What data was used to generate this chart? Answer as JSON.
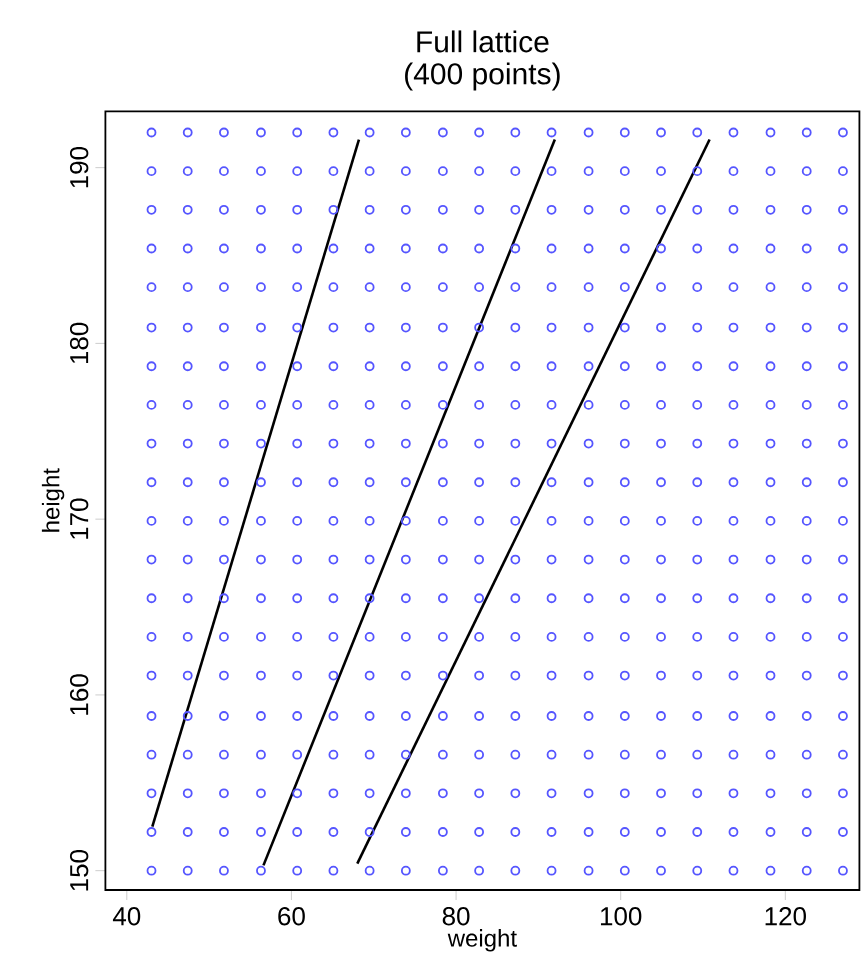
{
  "chart_data": {
    "type": "scatter",
    "title": "Full lattice",
    "subtitle": "(400 points)",
    "xlabel": "weight",
    "ylabel": "height",
    "xlim": [
      37.4,
      129
    ],
    "ylim": [
      148.9,
      193.2
    ],
    "xticks": [
      40,
      60,
      80,
      100,
      120
    ],
    "yticks": [
      150,
      160,
      170,
      180,
      190
    ],
    "series": [
      {
        "marker": "circle",
        "color": "#5555ff",
        "x": [
          43.0,
          47.4,
          51.8,
          56.3,
          60.7,
          65.1,
          69.5,
          73.9,
          78.4,
          82.8,
          87.2,
          91.6,
          96.1,
          100.5,
          104.9,
          109.3,
          113.7,
          118.2,
          122.6,
          127.0,
          43.0,
          47.4,
          51.8,
          56.3,
          60.7,
          65.1,
          69.5,
          73.9,
          78.4,
          82.8,
          87.2,
          91.6,
          96.1,
          100.5,
          104.9,
          109.3,
          113.7,
          118.2,
          122.6,
          127.0,
          43.0,
          47.4,
          51.8,
          56.3,
          60.7,
          65.1,
          69.5,
          73.9,
          78.4,
          82.8,
          87.2,
          91.6,
          96.1,
          100.5,
          104.9,
          109.3,
          113.7,
          118.2,
          122.6,
          127.0,
          43.0,
          47.4,
          51.8,
          56.3,
          60.7,
          65.1,
          69.5,
          73.9,
          78.4,
          82.8,
          87.2,
          91.6,
          96.1,
          100.5,
          104.9,
          109.3,
          113.7,
          118.2,
          122.6,
          127.0,
          43.0,
          47.4,
          51.8,
          56.3,
          60.7,
          65.1,
          69.5,
          73.9,
          78.4,
          82.8,
          87.2,
          91.6,
          96.1,
          100.5,
          104.9,
          109.3,
          113.7,
          118.2,
          122.6,
          127.0,
          43.0,
          47.4,
          51.8,
          56.3,
          60.7,
          65.1,
          69.5,
          73.9,
          78.4,
          82.8,
          87.2,
          91.6,
          96.1,
          100.5,
          104.9,
          109.3,
          113.7,
          118.2,
          122.6,
          127.0,
          43.0,
          47.4,
          51.8,
          56.3,
          60.7,
          65.1,
          69.5,
          73.9,
          78.4,
          82.8,
          87.2,
          91.6,
          96.1,
          100.5,
          104.9,
          109.3,
          113.7,
          118.2,
          122.6,
          127.0,
          43.0,
          47.4,
          51.8,
          56.3,
          60.7,
          65.1,
          69.5,
          73.9,
          78.4,
          82.8,
          87.2,
          91.6,
          96.1,
          100.5,
          104.9,
          109.3,
          113.7,
          118.2,
          122.6,
          127.0,
          43.0,
          47.4,
          51.8,
          56.3,
          60.7,
          65.1,
          69.5,
          73.9,
          78.4,
          82.8,
          87.2,
          91.6,
          96.1,
          100.5,
          104.9,
          109.3,
          113.7,
          118.2,
          122.6,
          127.0,
          43.0,
          47.4,
          51.8,
          56.3,
          60.7,
          65.1,
          69.5,
          73.9,
          78.4,
          82.8,
          87.2,
          91.6,
          96.1,
          100.5,
          104.9,
          109.3,
          113.7,
          118.2,
          122.6,
          127.0,
          43.0,
          47.4,
          51.8,
          56.3,
          60.7,
          65.1,
          69.5,
          73.9,
          78.4,
          82.8,
          87.2,
          91.6,
          96.1,
          100.5,
          104.9,
          109.3,
          113.7,
          118.2,
          122.6,
          127.0,
          43.0,
          47.4,
          51.8,
          56.3,
          60.7,
          65.1,
          69.5,
          73.9,
          78.4,
          82.8,
          87.2,
          91.6,
          96.1,
          100.5,
          104.9,
          109.3,
          113.7,
          118.2,
          122.6,
          127.0,
          43.0,
          47.4,
          51.8,
          56.3,
          60.7,
          65.1,
          69.5,
          73.9,
          78.4,
          82.8,
          87.2,
          91.6,
          96.1,
          100.5,
          104.9,
          109.3,
          113.7,
          118.2,
          122.6,
          127.0,
          43.0,
          47.4,
          51.8,
          56.3,
          60.7,
          65.1,
          69.5,
          73.9,
          78.4,
          82.8,
          87.2,
          91.6,
          96.1,
          100.5,
          104.9,
          109.3,
          113.7,
          118.2,
          122.6,
          127.0,
          43.0,
          47.4,
          51.8,
          56.3,
          60.7,
          65.1,
          69.5,
          73.9,
          78.4,
          82.8,
          87.2,
          91.6,
          96.1,
          100.5,
          104.9,
          109.3,
          113.7,
          118.2,
          122.6,
          127.0,
          43.0,
          47.4,
          51.8,
          56.3,
          60.7,
          65.1,
          69.5,
          73.9,
          78.4,
          82.8,
          87.2,
          91.6,
          96.1,
          100.5,
          104.9,
          109.3,
          113.7,
          118.2,
          122.6,
          127.0,
          43.0,
          47.4,
          51.8,
          56.3,
          60.7,
          65.1,
          69.5,
          73.9,
          78.4,
          82.8,
          87.2,
          91.6,
          96.1,
          100.5,
          104.9,
          109.3,
          113.7,
          118.2,
          122.6,
          127.0,
          43.0,
          47.4,
          51.8,
          56.3,
          60.7,
          65.1,
          69.5,
          73.9,
          78.4,
          82.8,
          87.2,
          91.6,
          96.1,
          100.5,
          104.9,
          109.3,
          113.7,
          118.2,
          122.6,
          127.0,
          43.0,
          47.4,
          51.8,
          56.3,
          60.7,
          65.1,
          69.5,
          73.9,
          78.4,
          82.8,
          87.2,
          91.6,
          96.1,
          100.5,
          104.9,
          109.3,
          113.7,
          118.2,
          122.6,
          127.0,
          43.0,
          47.4,
          51.8,
          56.3,
          60.7,
          65.1,
          69.5,
          73.9,
          78.4,
          82.8,
          87.2,
          91.6,
          96.1,
          100.5,
          104.9,
          109.3,
          113.7,
          118.2,
          122.6,
          127.0
        ],
        "values": [
          150.0,
          150.0,
          150.0,
          150.0,
          150.0,
          150.0,
          150.0,
          150.0,
          150.0,
          150.0,
          150.0,
          150.0,
          150.0,
          150.0,
          150.0,
          150.0,
          150.0,
          150.0,
          150.0,
          150.0,
          152.2,
          152.2,
          152.2,
          152.2,
          152.2,
          152.2,
          152.2,
          152.2,
          152.2,
          152.2,
          152.2,
          152.2,
          152.2,
          152.2,
          152.2,
          152.2,
          152.2,
          152.2,
          152.2,
          152.2,
          154.4,
          154.4,
          154.4,
          154.4,
          154.4,
          154.4,
          154.4,
          154.4,
          154.4,
          154.4,
          154.4,
          154.4,
          154.4,
          154.4,
          154.4,
          154.4,
          154.4,
          154.4,
          154.4,
          154.4,
          156.6,
          156.6,
          156.6,
          156.6,
          156.6,
          156.6,
          156.6,
          156.6,
          156.6,
          156.6,
          156.6,
          156.6,
          156.6,
          156.6,
          156.6,
          156.6,
          156.6,
          156.6,
          156.6,
          156.6,
          158.8,
          158.8,
          158.8,
          158.8,
          158.8,
          158.8,
          158.8,
          158.8,
          158.8,
          158.8,
          158.8,
          158.8,
          158.8,
          158.8,
          158.8,
          158.8,
          158.8,
          158.8,
          158.8,
          158.8,
          161.1,
          161.1,
          161.1,
          161.1,
          161.1,
          161.1,
          161.1,
          161.1,
          161.1,
          161.1,
          161.1,
          161.1,
          161.1,
          161.1,
          161.1,
          161.1,
          161.1,
          161.1,
          161.1,
          161.1,
          163.3,
          163.3,
          163.3,
          163.3,
          163.3,
          163.3,
          163.3,
          163.3,
          163.3,
          163.3,
          163.3,
          163.3,
          163.3,
          163.3,
          163.3,
          163.3,
          163.3,
          163.3,
          163.3,
          163.3,
          165.5,
          165.5,
          165.5,
          165.5,
          165.5,
          165.5,
          165.5,
          165.5,
          165.5,
          165.5,
          165.5,
          165.5,
          165.5,
          165.5,
          165.5,
          165.5,
          165.5,
          165.5,
          165.5,
          165.5,
          167.7,
          167.7,
          167.7,
          167.7,
          167.7,
          167.7,
          167.7,
          167.7,
          167.7,
          167.7,
          167.7,
          167.7,
          167.7,
          167.7,
          167.7,
          167.7,
          167.7,
          167.7,
          167.7,
          167.7,
          169.9,
          169.9,
          169.9,
          169.9,
          169.9,
          169.9,
          169.9,
          169.9,
          169.9,
          169.9,
          169.9,
          169.9,
          169.9,
          169.9,
          169.9,
          169.9,
          169.9,
          169.9,
          169.9,
          169.9,
          172.1,
          172.1,
          172.1,
          172.1,
          172.1,
          172.1,
          172.1,
          172.1,
          172.1,
          172.1,
          172.1,
          172.1,
          172.1,
          172.1,
          172.1,
          172.1,
          172.1,
          172.1,
          172.1,
          172.1,
          174.3,
          174.3,
          174.3,
          174.3,
          174.3,
          174.3,
          174.3,
          174.3,
          174.3,
          174.3,
          174.3,
          174.3,
          174.3,
          174.3,
          174.3,
          174.3,
          174.3,
          174.3,
          174.3,
          174.3,
          176.5,
          176.5,
          176.5,
          176.5,
          176.5,
          176.5,
          176.5,
          176.5,
          176.5,
          176.5,
          176.5,
          176.5,
          176.5,
          176.5,
          176.5,
          176.5,
          176.5,
          176.5,
          176.5,
          176.5,
          178.7,
          178.7,
          178.7,
          178.7,
          178.7,
          178.7,
          178.7,
          178.7,
          178.7,
          178.7,
          178.7,
          178.7,
          178.7,
          178.7,
          178.7,
          178.7,
          178.7,
          178.7,
          178.7,
          178.7,
          180.9,
          180.9,
          180.9,
          180.9,
          180.9,
          180.9,
          180.9,
          180.9,
          180.9,
          180.9,
          180.9,
          180.9,
          180.9,
          180.9,
          180.9,
          180.9,
          180.9,
          180.9,
          180.9,
          180.9,
          183.2,
          183.2,
          183.2,
          183.2,
          183.2,
          183.2,
          183.2,
          183.2,
          183.2,
          183.2,
          183.2,
          183.2,
          183.2,
          183.2,
          183.2,
          183.2,
          183.2,
          183.2,
          183.2,
          183.2,
          185.4,
          185.4,
          185.4,
          185.4,
          185.4,
          185.4,
          185.4,
          185.4,
          185.4,
          185.4,
          185.4,
          185.4,
          185.4,
          185.4,
          185.4,
          185.4,
          185.4,
          185.4,
          185.4,
          185.4,
          187.6,
          187.6,
          187.6,
          187.6,
          187.6,
          187.6,
          187.6,
          187.6,
          187.6,
          187.6,
          187.6,
          187.6,
          187.6,
          187.6,
          187.6,
          187.6,
          187.6,
          187.6,
          187.6,
          187.6,
          189.8,
          189.8,
          189.8,
          189.8,
          189.8,
          189.8,
          189.8,
          189.8,
          189.8,
          189.8,
          189.8,
          189.8,
          189.8,
          189.8,
          189.8,
          189.8,
          189.8,
          189.8,
          189.8,
          189.8,
          192.0,
          192.0,
          192.0,
          192.0,
          192.0,
          192.0,
          192.0,
          192.0,
          192.0,
          192.0,
          192.0,
          192.0,
          192.0,
          192.0,
          192.0,
          192.0,
          192.0,
          192.0,
          192.0,
          192.0
        ]
      },
      {
        "type": "line",
        "marker": "none",
        "line_style": "solid",
        "color": "#000000",
        "x": [
          43.1,
          68.2
        ],
        "values": [
          152.5,
          191.6
        ]
      },
      {
        "type": "line",
        "marker": "none",
        "line_style": "solid",
        "color": "#000000",
        "x": [
          56.6,
          92.0
        ],
        "values": [
          150.3,
          191.6
        ]
      },
      {
        "type": "line",
        "marker": "none",
        "line_style": "solid",
        "color": "#000000",
        "x": [
          68.0,
          110.8
        ],
        "values": [
          150.4,
          191.6
        ]
      }
    ]
  }
}
